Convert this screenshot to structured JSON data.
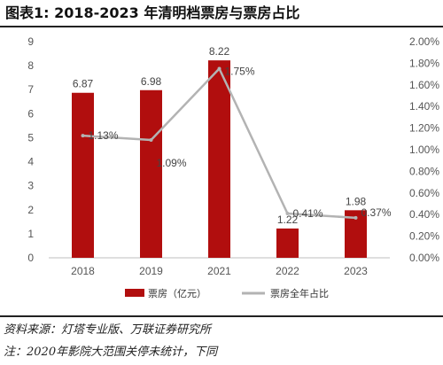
{
  "chart_data": {
    "type": "bar",
    "title": "图表1:  2018-2023 年清明档票房与票房占比",
    "categories": [
      "2018",
      "2019",
      "2021",
      "2022",
      "2023"
    ],
    "series": [
      {
        "name": "票房（亿元）",
        "type": "bar",
        "axis": "left",
        "color": "#b10e0e",
        "values": [
          6.87,
          6.98,
          8.22,
          1.22,
          1.98
        ],
        "labels": [
          "6.87",
          "6.98",
          "8.22",
          "1.22",
          "1.98"
        ]
      },
      {
        "name": "票房全年占比",
        "type": "line",
        "axis": "right",
        "color": "#b3b3b3",
        "values": [
          1.13,
          1.09,
          1.75,
          0.41,
          0.37
        ],
        "labels": [
          "1.13%",
          "1.09%",
          "1.75%",
          "0.41%",
          "0.37%"
        ]
      }
    ],
    "ylim_left": [
      0,
      9
    ],
    "yticks_left": [
      "0",
      "1",
      "2",
      "3",
      "4",
      "5",
      "6",
      "7",
      "8",
      "9"
    ],
    "ylim_right": [
      0,
      2.0
    ],
    "yticks_right": [
      "0.00%",
      "0.20%",
      "0.40%",
      "0.60%",
      "0.80%",
      "1.00%",
      "1.20%",
      "1.40%",
      "1.60%",
      "1.80%",
      "2.00%"
    ],
    "grid": false,
    "legend_position": "bottom"
  },
  "source_note": "资料来源：灯塔专业版、万联证券研究所",
  "note": "注：2020年影院大范围关停未统计，下同"
}
